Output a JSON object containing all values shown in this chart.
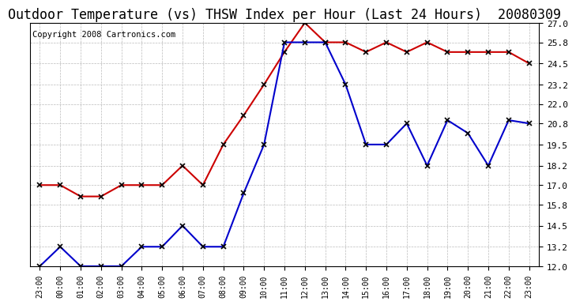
{
  "title": "Outdoor Temperature (vs) THSW Index per Hour (Last 24 Hours)  20080309",
  "copyright": "Copyright 2008 Cartronics.com",
  "x_labels": [
    "23:00",
    "00:00",
    "01:00",
    "02:00",
    "03:00",
    "04:00",
    "05:00",
    "06:00",
    "07:00",
    "08:00",
    "09:00",
    "10:00",
    "11:00",
    "12:00",
    "13:00",
    "14:00",
    "15:00",
    "16:00",
    "17:00",
    "18:00",
    "19:00",
    "20:00",
    "21:00",
    "22:00",
    "23:00"
  ],
  "red_data": [
    17.0,
    17.0,
    16.3,
    16.3,
    17.0,
    17.0,
    17.0,
    18.2,
    17.0,
    19.5,
    21.3,
    23.2,
    25.2,
    27.0,
    25.8,
    25.8,
    25.2,
    25.8,
    25.2,
    25.8,
    25.2,
    25.2,
    25.2,
    25.2,
    24.5
  ],
  "blue_data": [
    12.0,
    13.2,
    12.0,
    12.0,
    12.0,
    13.2,
    13.2,
    14.5,
    13.2,
    13.2,
    16.5,
    19.5,
    25.8,
    25.8,
    25.8,
    23.2,
    19.5,
    19.5,
    20.8,
    18.2,
    21.0,
    20.2,
    18.2,
    21.0,
    20.8
  ],
  "red_color": "#cc0000",
  "blue_color": "#0000cc",
  "bg_color": "#ffffff",
  "grid_color": "#bbbbbb",
  "ylim_min": 12.0,
  "ylim_max": 27.0,
  "yticks": [
    12.0,
    13.2,
    14.5,
    15.8,
    17.0,
    18.2,
    19.5,
    20.8,
    22.0,
    23.2,
    24.5,
    25.8,
    27.0
  ],
  "title_fontsize": 12,
  "copyright_fontsize": 7.5
}
